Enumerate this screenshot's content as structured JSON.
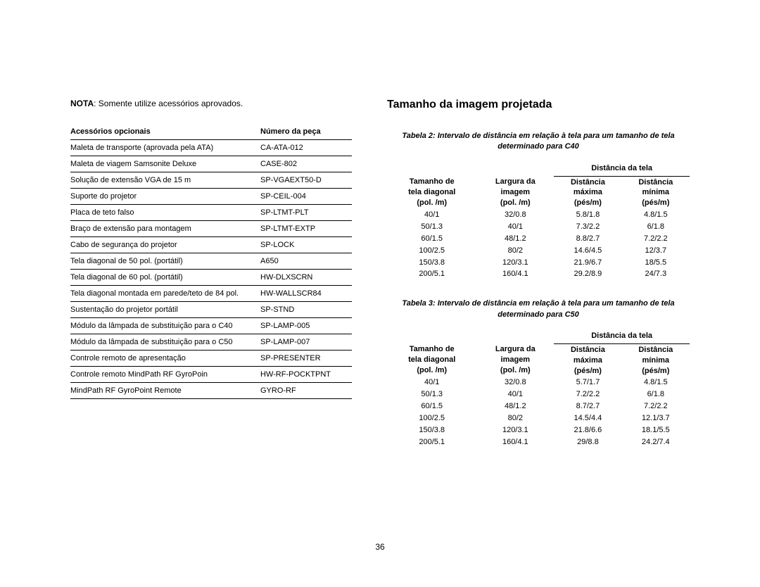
{
  "nota": {
    "label": "NOTA",
    "text": " Somente utilize acessórios aprovados."
  },
  "accessories": {
    "headers": [
      "Acessórios opcionais",
      "Número da peça"
    ],
    "rows": [
      [
        "Maleta de transporte (aprovada pela ATA)",
        "CA-ATA-012"
      ],
      [
        "Maleta de viagem Samsonite Deluxe",
        "CASE-802"
      ],
      [
        "Solução de extensão VGA de 15 m",
        "SP-VGAEXT50-D"
      ],
      [
        "Suporte do projetor",
        "SP-CEIL-004"
      ],
      [
        "Placa de teto falso",
        "SP-LTMT-PLT"
      ],
      [
        "Braço de extensão para montagem",
        "SP-LTMT-EXTP"
      ],
      [
        "Cabo de segurança do projetor",
        "SP-LOCK"
      ],
      [
        "Tela diagonal de 50 pol. (portátil)",
        "A650"
      ],
      [
        "Tela diagonal de 60 pol. (portátil)",
        "HW-DLXSCRN"
      ],
      [
        "Tela diagonal montada em parede/teto de 84 pol.",
        "HW-WALLSCR84"
      ],
      [
        "Sustentação do projetor portátil",
        "SP-STND"
      ],
      [
        "Módulo da lâmpada de substituição para o C40",
        "SP-LAMP-005"
      ],
      [
        "Módulo da lâmpada de substituição para o C50",
        "SP-LAMP-007"
      ],
      [
        "Controle remoto de apresentação",
        "SP-PRESENTER"
      ],
      [
        "Controle remoto MindPath RF GyroPoin",
        "HW-RF-POCKTPNT"
      ],
      [
        "MindPath RF GyroPoint Remote",
        "GYRO-RF"
      ]
    ]
  },
  "section_title": "Tamanho da imagem projetada",
  "distance_header_group": "Distância da tela",
  "distance_headers": {
    "diag_l1": "Tamanho de",
    "diag_l2": "tela diagonal",
    "diag_l3": "(pol. /m)",
    "width_l1": "Largura da",
    "width_l2": "imagem",
    "width_l3": "(pol. /m)",
    "max_l1": "Distância",
    "max_l2": "máxima",
    "max_l3": "(pés/m)",
    "min_l1": "Distância",
    "min_l2": "mínima",
    "min_l3": "(pés/m)"
  },
  "table2": {
    "caption": "Tabela 2: Intervalo de distância em relação à tela para um tamanho de tela determinado para C40",
    "rows": [
      [
        "40/1",
        "32/0.8",
        "5.8/1.8",
        "4.8/1.5"
      ],
      [
        "50/1.3",
        "40/1",
        "7.3/2.2",
        "6/1.8"
      ],
      [
        "60/1.5",
        "48/1.2",
        "8.8/2.7",
        "7.2/2.2"
      ],
      [
        "100/2.5",
        "80/2",
        "14.6/4.5",
        "12/3.7"
      ],
      [
        "150/3.8",
        "120/3.1",
        "21.9/6.7",
        "18/5.5"
      ],
      [
        "200/5.1",
        "160/4.1",
        "29.2/8.9",
        "24/7.3"
      ]
    ]
  },
  "table3": {
    "caption": "Tabela 3: Intervalo de distância em relação à tela para um tamanho de tela determinado para C50",
    "rows": [
      [
        "40/1",
        "32/0.8",
        "5.7/1.7",
        "4.8/1.5"
      ],
      [
        "50/1.3",
        "40/1",
        "7.2/2.2",
        "6/1.8"
      ],
      [
        "60/1.5",
        "48/1.2",
        "8.7/2.7",
        "7.2/2.2"
      ],
      [
        "100/2.5",
        "80/2",
        "14.5/4.4",
        "12.1/3.7"
      ],
      [
        "150/3.8",
        "120/3.1",
        "21.8/6.6",
        "18.1/5.5"
      ],
      [
        "200/5.1",
        "160/4.1",
        "29/8.8",
        "24.2/7.4"
      ]
    ]
  },
  "page_number": "36"
}
